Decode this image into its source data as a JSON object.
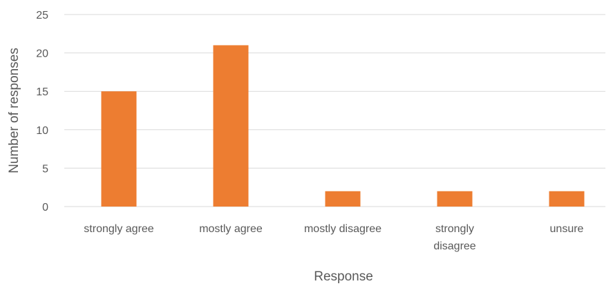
{
  "chart_data": {
    "type": "bar",
    "categories": [
      "strongly agree",
      "mostly agree",
      "mostly disagree",
      "strongly disagree",
      "unsure"
    ],
    "category_label_lines": [
      [
        "strongly agree"
      ],
      [
        "mostly agree"
      ],
      [
        "mostly disagree"
      ],
      [
        "strongly",
        "disagree"
      ],
      [
        "unsure"
      ]
    ],
    "values": [
      15,
      21,
      2,
      2,
      2
    ],
    "title": "",
    "xlabel": "Response",
    "ylabel": "Number of responses",
    "ylim": [
      0,
      25
    ],
    "yticks": [
      0,
      5,
      10,
      15,
      20,
      25
    ],
    "grid": true,
    "legend": "none",
    "bar_color": "#ED7D31",
    "grid_color": "#D9D9D9",
    "text_color": "#595959"
  }
}
